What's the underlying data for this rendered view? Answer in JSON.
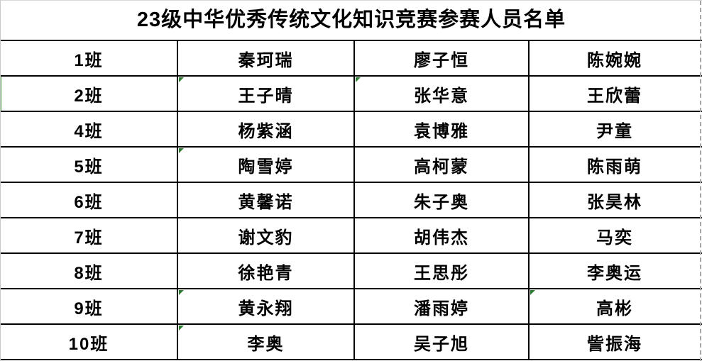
{
  "table": {
    "title": "23级中华优秀传统文化知识竞赛参赛人员名单",
    "rows": [
      {
        "class_label": "1班",
        "names": [
          "秦珂瑞",
          "廖子恒",
          "陈婉婉"
        ]
      },
      {
        "class_label": "2班",
        "names": [
          "王子晴",
          "张华意",
          "王欣蕾"
        ],
        "left_edge_green": true,
        "error_indicator_cols": [
          0,
          1
        ]
      },
      {
        "class_label": "4班",
        "names": [
          "杨紫涵",
          "袁博雅",
          "尹童"
        ]
      },
      {
        "class_label": "5班",
        "names": [
          "陶雪婷",
          "高柯蒙",
          "陈雨萌"
        ],
        "error_indicator_cols": [
          0
        ]
      },
      {
        "class_label": "6班",
        "names": [
          "黄馨诺",
          "朱子奥",
          "张昊林"
        ]
      },
      {
        "class_label": "7班",
        "names": [
          "谢文豹",
          "胡伟杰",
          "马奕"
        ]
      },
      {
        "class_label": "8班",
        "names": [
          "徐艳青",
          "王思彤",
          "李奥运"
        ]
      },
      {
        "class_label": "9班",
        "names": [
          "黄永翔",
          "潘雨婷",
          "高彬"
        ],
        "error_indicator_cols": [
          0,
          2
        ]
      },
      {
        "class_label": "10班",
        "names": [
          "李奥",
          "吴子旭",
          "訾振海"
        ],
        "error_indicator_cols": [
          0
        ]
      }
    ]
  },
  "icons": {
    "error_indicator": "error-indicator-triangle"
  },
  "colors": {
    "text": "#000000",
    "grid_border": "#000000",
    "error_indicator_green": "#2e7d32",
    "row_edge_green": "#3a9a3a",
    "page_break_gray": "#a6a6a6",
    "outer_gridline_gray": "#c9c9c9",
    "background": "#ffffff"
  }
}
